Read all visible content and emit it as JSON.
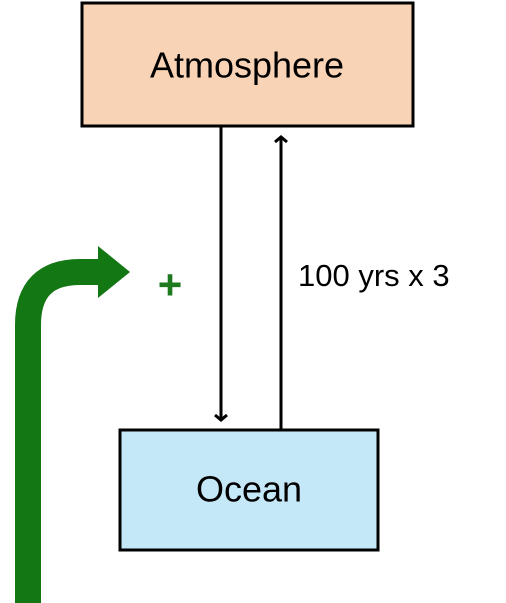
{
  "nodes": [
    {
      "label": "Atmosphere"
    },
    {
      "label": "Ocean"
    }
  ],
  "edge_label": "100 yrs x 3",
  "sign": "+"
}
